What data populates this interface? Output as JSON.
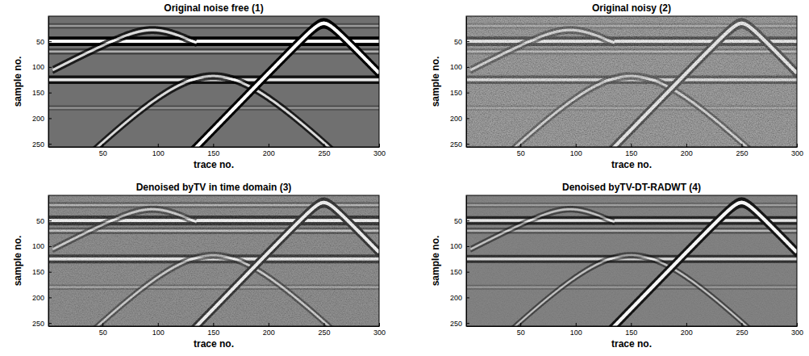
{
  "chart_data": [
    {
      "type": "seismic_section",
      "title": "Original noise free (1)",
      "x_label": "trace no.",
      "y_label": "sample no.",
      "xlim": [
        1,
        300
      ],
      "ylim": [
        1,
        256
      ],
      "xticks": [
        50,
        100,
        150,
        200,
        250,
        300
      ],
      "yticks": [
        50,
        100,
        150,
        200,
        250
      ],
      "color": "#707070",
      "noise_level": 0,
      "events": [
        {
          "type": "reflector",
          "sample": 20,
          "amplitude": 0.2
        },
        {
          "type": "reflector",
          "sample": 50,
          "amplitude": 0.85
        },
        {
          "type": "reflector",
          "sample": 70,
          "amplitude": 0.3
        },
        {
          "type": "reflector",
          "sample": 125,
          "amplitude": 0.7
        },
        {
          "type": "reflector",
          "sample": 180,
          "amplitude": 0.15
        },
        {
          "type": "hyperbola",
          "apex_trace": 95,
          "apex_sample": 28,
          "velocity": 0.88,
          "trace_range": [
            5,
            135
          ],
          "amplitude": 0.6
        },
        {
          "type": "hyperbola",
          "apex_trace": 150,
          "apex_sample": 118,
          "velocity": 0.46,
          "trace_range": [
            1,
            300
          ],
          "amplitude": 0.6
        },
        {
          "type": "hyperbola",
          "apex_trace": 250,
          "apex_sample": 15,
          "velocity": 0.45,
          "trace_range": [
            1,
            300
          ],
          "amplitude": 1.0
        }
      ]
    },
    {
      "type": "seismic_section",
      "title": "Original noisy (2)",
      "x_label": "trace no.",
      "y_label": "sample no.",
      "xlim": [
        1,
        300
      ],
      "ylim": [
        1,
        256
      ],
      "xticks": [
        50,
        100,
        150,
        200,
        250,
        300
      ],
      "yticks": [
        50,
        100,
        150,
        200,
        250
      ],
      "color": "#707070",
      "noise_level": 0.6,
      "events": [
        {
          "type": "reflector",
          "sample": 20,
          "amplitude": 0.2
        },
        {
          "type": "reflector",
          "sample": 50,
          "amplitude": 0.85
        },
        {
          "type": "reflector",
          "sample": 70,
          "amplitude": 0.3
        },
        {
          "type": "reflector",
          "sample": 125,
          "amplitude": 0.7
        },
        {
          "type": "reflector",
          "sample": 180,
          "amplitude": 0.15
        },
        {
          "type": "hyperbola",
          "apex_trace": 95,
          "apex_sample": 28,
          "velocity": 0.88,
          "trace_range": [
            5,
            135
          ],
          "amplitude": 0.6
        },
        {
          "type": "hyperbola",
          "apex_trace": 150,
          "apex_sample": 118,
          "velocity": 0.46,
          "trace_range": [
            1,
            300
          ],
          "amplitude": 0.6
        },
        {
          "type": "hyperbola",
          "apex_trace": 250,
          "apex_sample": 15,
          "velocity": 0.45,
          "trace_range": [
            1,
            300
          ],
          "amplitude": 1.0
        }
      ]
    },
    {
      "type": "seismic_section",
      "title": "Denoised byTV in time domain (3)",
      "x_label": "trace no.",
      "y_label": "sample no.",
      "xlim": [
        1,
        300
      ],
      "ylim": [
        1,
        256
      ],
      "xticks": [
        50,
        100,
        150,
        200,
        250,
        300
      ],
      "yticks": [
        50,
        100,
        150,
        200,
        250
      ],
      "color": "#707070",
      "noise_level": 0.4,
      "events": [
        {
          "type": "reflector",
          "sample": 20,
          "amplitude": 0.3
        },
        {
          "type": "reflector",
          "sample": 50,
          "amplitude": 0.9
        },
        {
          "type": "reflector",
          "sample": 70,
          "amplitude": 0.4
        },
        {
          "type": "reflector",
          "sample": 125,
          "amplitude": 0.75
        },
        {
          "type": "reflector",
          "sample": 180,
          "amplitude": 0.2
        },
        {
          "type": "hyperbola",
          "apex_trace": 95,
          "apex_sample": 28,
          "velocity": 0.88,
          "trace_range": [
            5,
            135
          ],
          "amplitude": 0.5
        },
        {
          "type": "hyperbola",
          "apex_trace": 150,
          "apex_sample": 118,
          "velocity": 0.46,
          "trace_range": [
            1,
            300
          ],
          "amplitude": 0.5
        },
        {
          "type": "hyperbola",
          "apex_trace": 250,
          "apex_sample": 15,
          "velocity": 0.45,
          "trace_range": [
            1,
            300
          ],
          "amplitude": 0.95
        }
      ]
    },
    {
      "type": "seismic_section",
      "title": "Denoised byTV-DT-RADWT (4)",
      "x_label": "trace no.",
      "y_label": "sample no.",
      "xlim": [
        1,
        300
      ],
      "ylim": [
        1,
        256
      ],
      "xticks": [
        50,
        100,
        150,
        200,
        250,
        300
      ],
      "yticks": [
        50,
        100,
        150,
        200,
        250
      ],
      "color": "#787878",
      "noise_level": 0.15,
      "events": [
        {
          "type": "reflector",
          "sample": 20,
          "amplitude": 0.15
        },
        {
          "type": "reflector",
          "sample": 50,
          "amplitude": 0.7
        },
        {
          "type": "reflector",
          "sample": 70,
          "amplitude": 0.3
        },
        {
          "type": "reflector",
          "sample": 125,
          "amplitude": 0.6
        },
        {
          "type": "reflector",
          "sample": 180,
          "amplitude": 0.1
        },
        {
          "type": "hyperbola",
          "apex_trace": 95,
          "apex_sample": 28,
          "velocity": 0.88,
          "trace_range": [
            5,
            135
          ],
          "amplitude": 0.4
        },
        {
          "type": "hyperbola",
          "apex_trace": 150,
          "apex_sample": 118,
          "velocity": 0.46,
          "trace_range": [
            1,
            300
          ],
          "amplitude": 0.4
        },
        {
          "type": "hyperbola",
          "apex_trace": 250,
          "apex_sample": 15,
          "velocity": 0.45,
          "trace_range": [
            1,
            300
          ],
          "amplitude": 1.0
        }
      ]
    }
  ]
}
